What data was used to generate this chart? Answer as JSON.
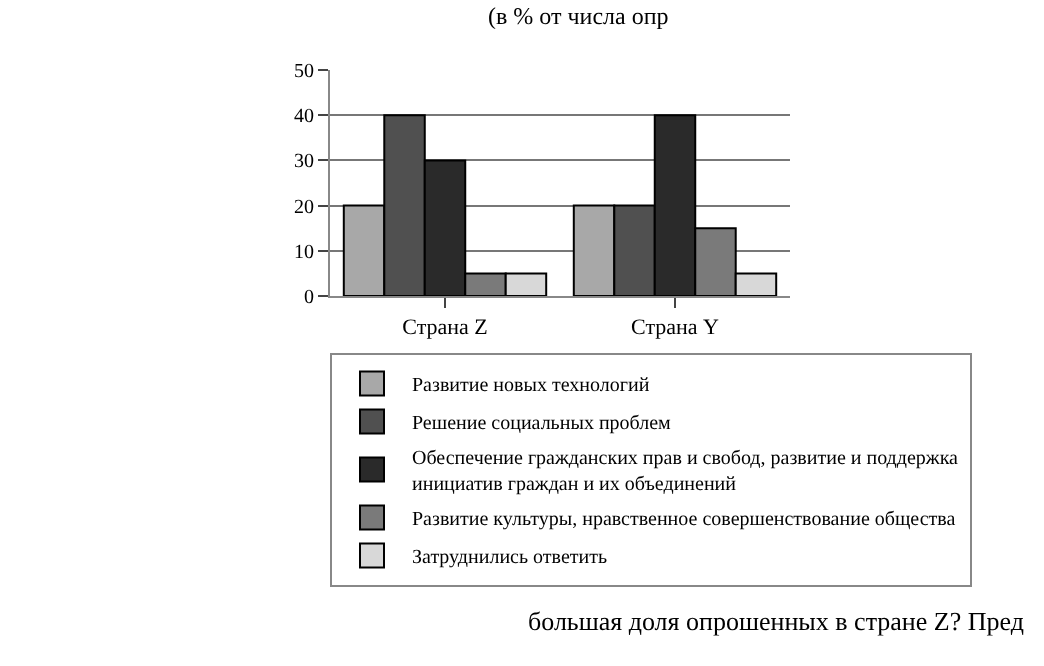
{
  "chart_data": {
    "type": "bar",
    "categories": [
      "Страна Z",
      "Страна Y"
    ],
    "series": [
      {
        "name": "Развитие новых технологий",
        "color": "#a8a8a8",
        "values": [
          20,
          20
        ]
      },
      {
        "name": "Решение социальных проблем",
        "color": "#505050",
        "values": [
          40,
          20
        ]
      },
      {
        "name": "Обеспечение гражданских прав и свобод, развитие и поддержка инициатив граждан и их объединений",
        "color": "#2a2a2a",
        "values": [
          30,
          40
        ]
      },
      {
        "name": "Развитие культуры, нравственное совершенствование общества",
        "color": "#7a7a7a",
        "values": [
          5,
          15
        ]
      },
      {
        "name": "Затруднились ответить",
        "color": "#d8d8d8",
        "values": [
          5,
          5
        ]
      }
    ],
    "ylim": [
      0,
      50
    ],
    "yticks": [
      0,
      10,
      20,
      30,
      40,
      50
    ],
    "grid": "y",
    "legend": "bottom",
    "annotations": [
      "(в % от числа опр",
      "большая доля опрошенных в стране Z? Пред"
    ]
  }
}
